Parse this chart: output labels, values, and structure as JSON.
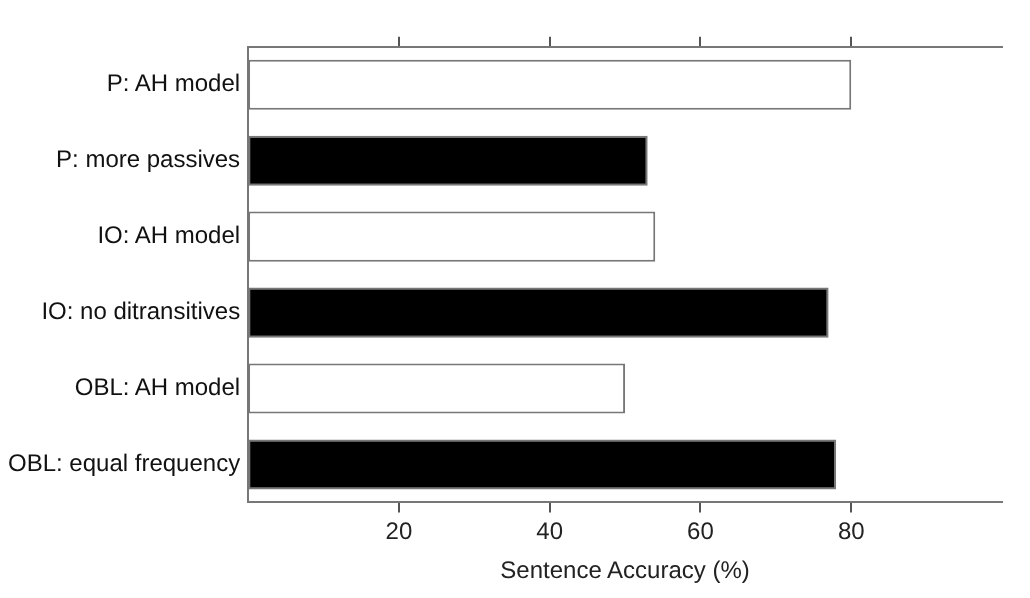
{
  "chart_data": {
    "type": "bar",
    "orientation": "horizontal",
    "xlabel": "Sentence Accuracy (%)",
    "categories": [
      "P: AH model",
      "P: more passives",
      "IO: AH model",
      "IO: no ditransitives",
      "OBL: AH model",
      "OBL: equal frequency"
    ],
    "values": [
      80,
      53,
      54,
      77,
      50,
      78
    ],
    "colors": [
      "#ffffff",
      "#000000",
      "#ffffff",
      "#000000",
      "#ffffff",
      "#000000"
    ],
    "xlim": [
      0,
      100
    ],
    "xticks": [
      20,
      40,
      60,
      80
    ],
    "grid": false,
    "legend": false
  }
}
